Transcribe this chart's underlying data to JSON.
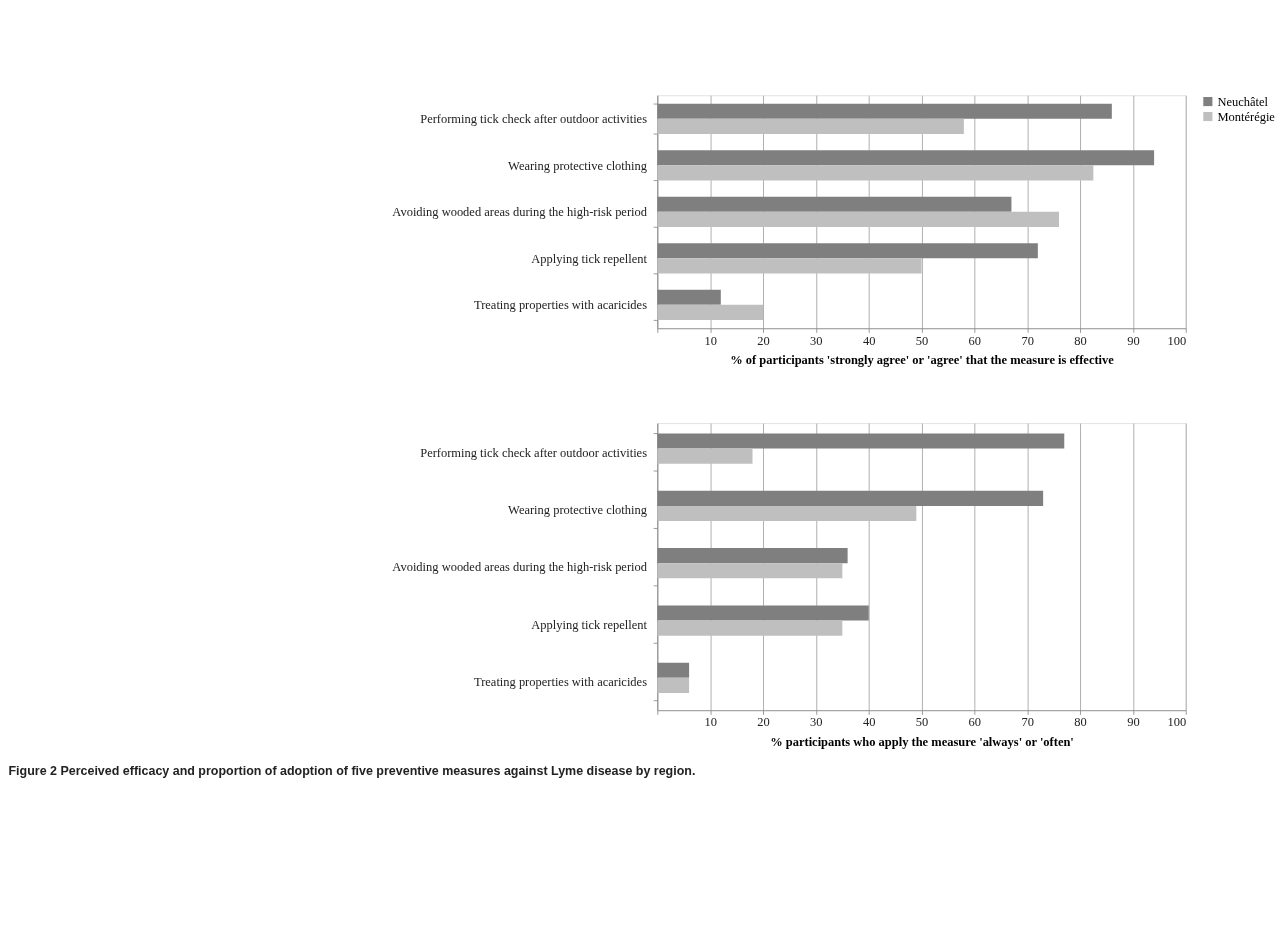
{
  "chart_data": [
    {
      "type": "bar",
      "orientation": "horizontal",
      "xlabel": "% of participants  'strongly agree' or 'agree' that the measure is effective",
      "categories": [
        "Performing tick check after outdoor activities",
        "Wearing protective clothing",
        "Avoiding wooded areas during the high-risk period",
        "Applying tick repellent",
        "Treating properties with acaricides"
      ],
      "series": [
        {
          "name": "Neuchâtel",
          "color": "#7f7f7f",
          "values": [
            86,
            94,
            67,
            72,
            12
          ]
        },
        {
          "name": "Montérégie",
          "color": "#bfbfbf",
          "values": [
            58,
            82.5,
            76,
            50,
            20
          ]
        }
      ],
      "xlim": [
        0,
        100
      ],
      "xticks": [
        {
          "value": 0,
          "label": null
        },
        10,
        20,
        30,
        40,
        50,
        60,
        70,
        80,
        90,
        100
      ],
      "grid": "x",
      "legend": "right"
    },
    {
      "type": "bar",
      "orientation": "horizontal",
      "xlabel": "% participants  who apply the measure 'always' or 'often'",
      "categories": [
        "Performing tick check after outdoor activities",
        "Wearing protective clothing",
        "Avoiding wooded areas during the high-risk period",
        "Applying tick repellent",
        "Treating properties with acaricides"
      ],
      "series": [
        {
          "name": "Neuchâtel",
          "color": "#7f7f7f",
          "values": [
            77,
            73,
            36,
            40,
            6
          ]
        },
        {
          "name": "Montérégie",
          "color": "#bfbfbf",
          "values": [
            18,
            49,
            35,
            35,
            6
          ]
        }
      ],
      "xlim": [
        0,
        100
      ],
      "xticks": [
        {
          "value": 0,
          "label": null
        },
        10,
        20,
        30,
        40,
        50,
        60,
        70,
        80,
        90,
        100
      ],
      "grid": "x",
      "legend": false,
      "annotations": [
        "Figure 2 Perceived efficacy and proportion of adoption of five preventive measures against Lyme disease by region."
      ]
    }
  ]
}
